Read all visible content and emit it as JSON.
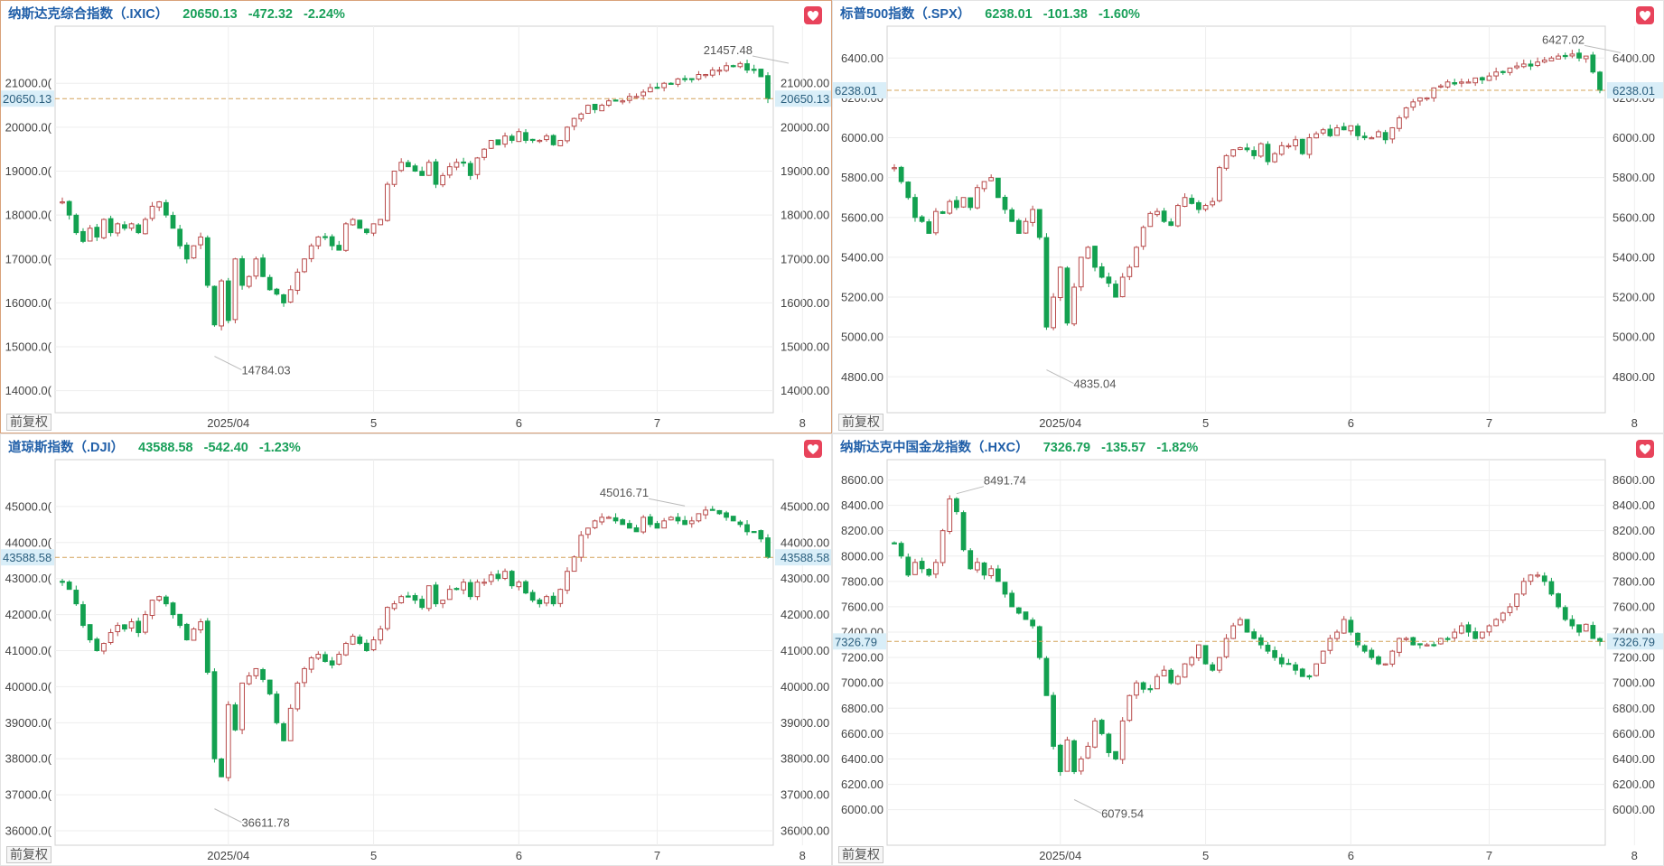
{
  "ui": {
    "fq_label": "前复权"
  },
  "chart_data": [
    {
      "type": "candlestick",
      "title": "纳斯达克综合指数（.IXIC）",
      "last": "20650.13",
      "change": "-472.32",
      "change_pct": "-2.24%",
      "ylim": [
        13500,
        22300
      ],
      "yticks": [
        14000,
        15000,
        16000,
        17000,
        18000,
        19000,
        20000,
        21000
      ],
      "ytick_labels": [
        "14000.00",
        "15000.00",
        "16000.00",
        "17000.00",
        "18000.00",
        "19000.00",
        "20000.00",
        "21000.00"
      ],
      "ytick_labels_left": [
        "14000.0(",
        "15000.0(",
        "16000.0(",
        "17000.0(",
        "18000.0(",
        "19000.0(",
        "20000.0(",
        "21000.0("
      ],
      "xticks": [
        {
          "label": "2025/04",
          "i": 24
        },
        {
          "label": "5",
          "i": 45
        },
        {
          "label": "6",
          "i": 66
        },
        {
          "label": "7",
          "i": 86
        },
        {
          "label": "8",
          "i": 107
        }
      ],
      "high_label": "21457.48",
      "high_index": 105,
      "low_label": "14784.03",
      "low_index": 22,
      "last_label": "20650.13",
      "closes": [
        18300,
        18000,
        17600,
        17400,
        17700,
        17500,
        17900,
        17600,
        17800,
        17700,
        17800,
        17600,
        17900,
        18200,
        18300,
        18000,
        17700,
        17300,
        17000,
        17300,
        17500,
        16400,
        15500,
        16500,
        15600,
        17000,
        16400,
        16600,
        17000,
        16600,
        16300,
        16200,
        16000,
        16300,
        16700,
        17000,
        17300,
        17500,
        17500,
        17300,
        17200,
        17800,
        17900,
        17700,
        17600,
        17800,
        17900,
        18700,
        19000,
        19200,
        19100,
        19000,
        18900,
        19200,
        18700,
        18900,
        19100,
        19200,
        19200,
        18900,
        19300,
        19500,
        19700,
        19600,
        19800,
        19700,
        19900,
        19700,
        19700,
        19700,
        19800,
        19600,
        19700,
        20000,
        20200,
        20300,
        20500,
        20400,
        20500,
        20600,
        20600,
        20600,
        20700,
        20700,
        20800,
        20900,
        20900,
        21000,
        21000,
        21100,
        21100,
        21100,
        21200,
        21200,
        21300,
        21300,
        21400,
        21400,
        21450,
        21300,
        21300,
        21150,
        20650
      ]
    },
    {
      "type": "candlestick",
      "title": "标普500指数（.SPX）",
      "last": "6238.01",
      "change": "-101.38",
      "change_pct": "-1.60%",
      "ylim": [
        4620,
        6560
      ],
      "yticks": [
        4800,
        5000,
        5200,
        5400,
        5600,
        5800,
        6000,
        6200,
        6400
      ],
      "ytick_labels": [
        "4800.00",
        "5000.00",
        "5200.00",
        "5400.00",
        "5600.00",
        "5800.00",
        "6000.00",
        "6200.00",
        "6400.00"
      ],
      "ytick_labels_left": [
        "4800.00",
        "5000.00",
        "5200.00",
        "5400.00",
        "5600.00",
        "5800.00",
        "6000.00",
        "6200.00",
        "6400.00"
      ],
      "xticks": [
        {
          "label": "2025/04",
          "i": 24
        },
        {
          "label": "5",
          "i": 45
        },
        {
          "label": "6",
          "i": 66
        },
        {
          "label": "7",
          "i": 86
        },
        {
          "label": "8",
          "i": 107
        }
      ],
      "high_label": "6427.02",
      "high_index": 105,
      "low_label": "4835.04",
      "low_index": 22,
      "last_label": "6238.01",
      "closes": [
        5850,
        5780,
        5700,
        5600,
        5580,
        5520,
        5630,
        5620,
        5680,
        5650,
        5700,
        5650,
        5750,
        5780,
        5800,
        5700,
        5640,
        5580,
        5520,
        5580,
        5640,
        5500,
        5050,
        5200,
        5350,
        5070,
        5250,
        5400,
        5450,
        5350,
        5300,
        5270,
        5200,
        5300,
        5350,
        5450,
        5550,
        5620,
        5630,
        5580,
        5560,
        5660,
        5700,
        5670,
        5640,
        5660,
        5680,
        5850,
        5910,
        5940,
        5950,
        5940,
        5910,
        5970,
        5880,
        5920,
        5960,
        5960,
        5990,
        5920,
        6000,
        6020,
        6040,
        6010,
        6050,
        6040,
        6060,
        6010,
        6000,
        6000,
        6030,
        5990,
        6050,
        6100,
        6150,
        6180,
        6200,
        6200,
        6250,
        6260,
        6280,
        6270,
        6280,
        6280,
        6300,
        6290,
        6310,
        6330,
        6330,
        6350,
        6360,
        6370,
        6360,
        6380,
        6390,
        6400,
        6410,
        6410,
        6420,
        6400,
        6410,
        6330,
        6238
      ]
    },
    {
      "type": "candlestick",
      "title": "道琼斯指数（.DJI）",
      "last": "43588.58",
      "change": "-542.40",
      "change_pct": "-1.23%",
      "ylim": [
        35600,
        46300
      ],
      "yticks": [
        36000,
        37000,
        38000,
        39000,
        40000,
        41000,
        42000,
        43000,
        44000,
        45000
      ],
      "ytick_labels": [
        "36000.00",
        "37000.00",
        "38000.00",
        "39000.00",
        "40000.00",
        "41000.00",
        "42000.00",
        "43000.00",
        "44000.00",
        "45000.00"
      ],
      "ytick_labels_left": [
        "36000.0(",
        "37000.0(",
        "38000.0(",
        "39000.0(",
        "40000.0(",
        "41000.0(",
        "42000.0(",
        "43000.0(",
        "44000.0(",
        "45000.0("
      ],
      "xticks": [
        {
          "label": "2025/04",
          "i": 24
        },
        {
          "label": "5",
          "i": 45
        },
        {
          "label": "6",
          "i": 66
        },
        {
          "label": "7",
          "i": 86
        },
        {
          "label": "8",
          "i": 107
        }
      ],
      "high_label": "45016.71",
      "high_index": 90,
      "low_label": "36611.78",
      "low_index": 22,
      "last_label": "43588.58",
      "closes": [
        42900,
        42700,
        42300,
        41700,
        41300,
        41000,
        41200,
        41500,
        41700,
        41600,
        41800,
        41500,
        42000,
        42400,
        42500,
        42300,
        42000,
        41700,
        41300,
        41600,
        41800,
        40400,
        38000,
        37500,
        39500,
        38800,
        40100,
        40300,
        40500,
        40200,
        39800,
        39000,
        38500,
        39400,
        40100,
        40500,
        40800,
        40900,
        40700,
        40600,
        40900,
        41200,
        41400,
        41200,
        41000,
        41300,
        41600,
        42200,
        42300,
        42500,
        42500,
        42400,
        42200,
        42800,
        42300,
        42400,
        42700,
        42700,
        42900,
        42500,
        42900,
        42900,
        43100,
        43000,
        43200,
        42800,
        42900,
        42600,
        42400,
        42300,
        42500,
        42300,
        42700,
        43200,
        43600,
        44200,
        44400,
        44600,
        44700,
        44700,
        44600,
        44500,
        44400,
        44300,
        44700,
        44500,
        44400,
        44600,
        44700,
        44600,
        44500,
        44600,
        44800,
        44900,
        44900,
        44800,
        44700,
        44600,
        44500,
        44300,
        44300,
        44100,
        43588
      ]
    },
    {
      "type": "candlestick",
      "title": "纳斯达克中国金龙指数（.HXC）",
      "last": "7326.79",
      "change": "-135.57",
      "change_pct": "-1.82%",
      "ylim": [
        5720,
        8760
      ],
      "yticks": [
        6000,
        6200,
        6400,
        6600,
        6800,
        7000,
        7200,
        7400,
        7600,
        7800,
        8000,
        8200,
        8400,
        8600
      ],
      "ytick_labels": [
        "6000.00",
        "6200.00",
        "6400.00",
        "6600.00",
        "6800.00",
        "7000.00",
        "7200.00",
        "7400.00",
        "7600.00",
        "7800.00",
        "8000.00",
        "8200.00",
        "8400.00",
        "8600.00"
      ],
      "ytick_labels_left": [
        "6000.00",
        "6200.00",
        "6400.00",
        "6600.00",
        "6800.00",
        "7000.00",
        "7200.00",
        "7400.00",
        "7600.00",
        "7800.00",
        "8000.00",
        "8200.00",
        "8400.00",
        "8600.00"
      ],
      "xticks": [
        {
          "label": "2025/04",
          "i": 24
        },
        {
          "label": "5",
          "i": 45
        },
        {
          "label": "6",
          "i": 66
        },
        {
          "label": "7",
          "i": 86
        },
        {
          "label": "8",
          "i": 107
        }
      ],
      "high_label": "8491.74",
      "high_index": 9,
      "low_label": "6079.54",
      "low_index": 26,
      "last_label": "7326.79",
      "closes": [
        8100,
        8000,
        7850,
        7950,
        7900,
        7850,
        7950,
        8200,
        8450,
        8350,
        8050,
        7900,
        7950,
        7850,
        7900,
        7800,
        7700,
        7600,
        7550,
        7500,
        7450,
        7200,
        6900,
        6500,
        6300,
        6550,
        6300,
        6400,
        6500,
        6700,
        6600,
        6450,
        6400,
        6700,
        6900,
        7000,
        6950,
        6950,
        7050,
        7100,
        7000,
        7050,
        7150,
        7200,
        7300,
        7150,
        7100,
        7200,
        7350,
        7450,
        7500,
        7400,
        7350,
        7300,
        7250,
        7200,
        7150,
        7150,
        7100,
        7050,
        7050,
        7150,
        7250,
        7350,
        7400,
        7500,
        7400,
        7300,
        7250,
        7200,
        7150,
        7150,
        7250,
        7350,
        7350,
        7300,
        7300,
        7300,
        7300,
        7350,
        7350,
        7400,
        7450,
        7400,
        7350,
        7400,
        7450,
        7500,
        7550,
        7600,
        7700,
        7800,
        7850,
        7850,
        7800,
        7700,
        7600,
        7500,
        7450,
        7400,
        7462,
        7350,
        7326
      ]
    }
  ]
}
